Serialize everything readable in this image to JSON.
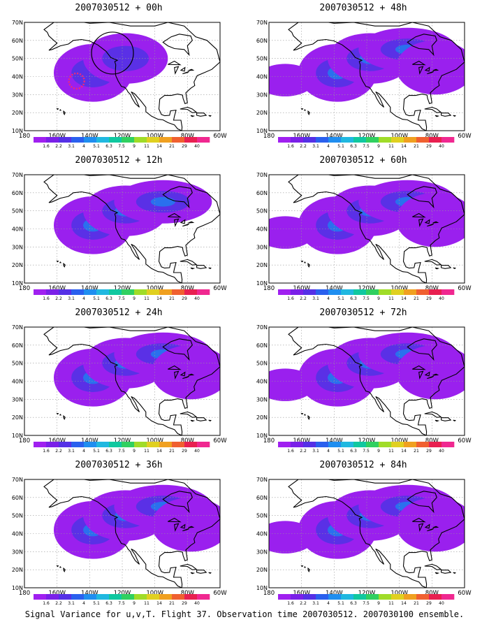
{
  "footer": "Signal Variance for u,v,T. Flight 37. Observation time 2007030512. 2007030100 ensemble.",
  "chart_data": {
    "type": "heatmap",
    "x_ticks": [
      "180",
      "160W",
      "140W",
      "120W",
      "100W",
      "80W",
      "60W"
    ],
    "y_ticks": [
      "10N",
      "20N",
      "30N",
      "40N",
      "50N",
      "60N",
      "70N"
    ],
    "xlim": [
      -180,
      -60
    ],
    "ylim": [
      10,
      70
    ],
    "colorbar": {
      "labels": [
        "1.6",
        "2.2",
        "3.1",
        "4",
        "5.1",
        "6.3",
        "7.5",
        "9",
        "11",
        "14",
        "21",
        "29",
        "40"
      ],
      "colors": [
        "#a020f0",
        "#7a20e8",
        "#5530e6",
        "#2a60ee",
        "#1f8ef0",
        "#20b8e0",
        "#10c8a0",
        "#30d060",
        "#a0dc28",
        "#e0d020",
        "#f0a020",
        "#f06030",
        "#e82050",
        "#f02890"
      ]
    },
    "panels": [
      {
        "title": "2007030512 + 00h",
        "coverage": 0.25,
        "intensity": 0.35,
        "ring": true,
        "circle": true
      },
      {
        "title": "2007030512 + 48h",
        "coverage": 0.7,
        "intensity": 0.55
      },
      {
        "title": "2007030512 + 12h",
        "coverage": 0.4,
        "intensity": 0.45
      },
      {
        "title": "2007030512 + 60h",
        "coverage": 0.75,
        "intensity": 0.6
      },
      {
        "title": "2007030512 + 24h",
        "coverage": 0.55,
        "intensity": 0.45
      },
      {
        "title": "2007030512 + 72h",
        "coverage": 0.8,
        "intensity": 0.6
      },
      {
        "title": "2007030512 + 36h",
        "coverage": 0.65,
        "intensity": 0.5
      },
      {
        "title": "2007030512 + 84h",
        "coverage": 0.8,
        "intensity": 0.65
      }
    ]
  }
}
